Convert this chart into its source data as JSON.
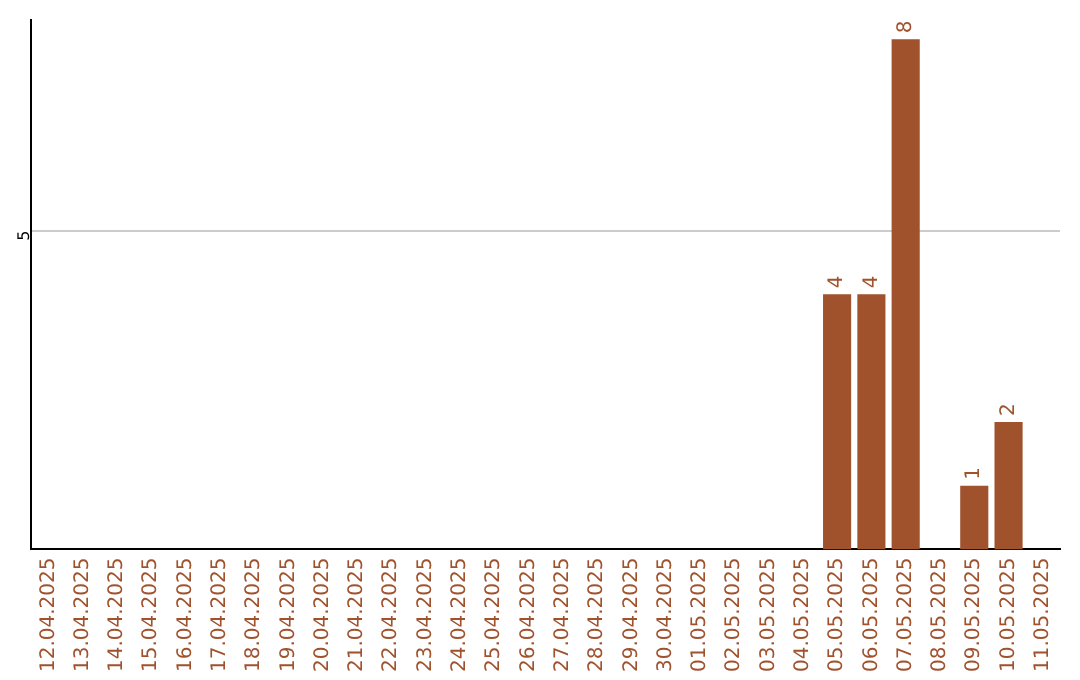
{
  "chart_data": {
    "type": "bar",
    "categories": [
      "12.04.2025",
      "13.04.2025",
      "14.04.2025",
      "15.04.2025",
      "16.04.2025",
      "17.04.2025",
      "18.04.2025",
      "19.04.2025",
      "20.04.2025",
      "21.04.2025",
      "22.04.2025",
      "23.04.2025",
      "24.04.2025",
      "25.04.2025",
      "26.04.2025",
      "27.04.2025",
      "28.04.2025",
      "29.04.2025",
      "30.04.2025",
      "01.05.2025",
      "02.05.2025",
      "03.05.2025",
      "04.05.2025",
      "05.05.2025",
      "06.05.2025",
      "07.05.2025",
      "08.05.2025",
      "09.05.2025",
      "10.05.2025",
      "11.05.2025"
    ],
    "values": [
      null,
      null,
      null,
      null,
      null,
      null,
      null,
      null,
      null,
      null,
      null,
      null,
      null,
      null,
      null,
      null,
      null,
      null,
      null,
      null,
      null,
      null,
      null,
      4,
      4,
      8,
      null,
      1,
      2,
      null
    ],
    "value_labels": [
      null,
      null,
      null,
      null,
      null,
      null,
      null,
      null,
      null,
      null,
      null,
      null,
      null,
      null,
      null,
      null,
      null,
      null,
      null,
      null,
      null,
      null,
      null,
      "4",
      "4",
      "8",
      null,
      "1",
      "2",
      null
    ],
    "color": "#a0522d",
    "ylim": [
      0,
      8.3
    ],
    "yticks": [
      5
    ],
    "grid": "y",
    "legend": false
  }
}
